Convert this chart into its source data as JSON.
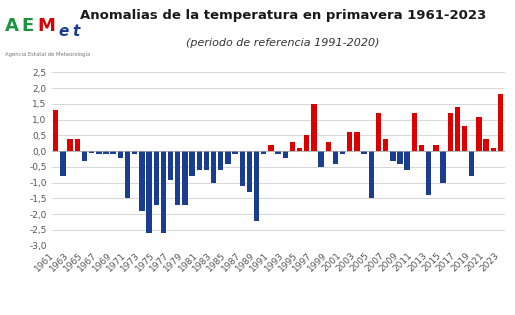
{
  "years": [
    1961,
    1962,
    1963,
    1964,
    1965,
    1966,
    1967,
    1968,
    1969,
    1970,
    1971,
    1972,
    1973,
    1974,
    1975,
    1976,
    1977,
    1978,
    1979,
    1980,
    1981,
    1982,
    1983,
    1984,
    1985,
    1986,
    1987,
    1988,
    1989,
    1990,
    1991,
    1992,
    1993,
    1994,
    1995,
    1996,
    1997,
    1998,
    1999,
    2000,
    2001,
    2002,
    2003,
    2004,
    2005,
    2006,
    2007,
    2008,
    2009,
    2010,
    2011,
    2012,
    2013,
    2014,
    2015,
    2016,
    2017,
    2018,
    2019,
    2020,
    2021,
    2022,
    2023
  ],
  "values": [
    1.3,
    -0.8,
    0.4,
    0.4,
    -0.3,
    -0.05,
    -0.1,
    -0.1,
    -0.1,
    -0.2,
    -1.5,
    -0.1,
    -1.9,
    -2.6,
    -1.7,
    -2.6,
    -0.9,
    -1.7,
    -1.7,
    -0.8,
    -0.6,
    -0.6,
    -1.0,
    -0.6,
    -0.4,
    -0.1,
    -1.1,
    -1.3,
    -2.2,
    -0.1,
    0.2,
    -0.1,
    -0.2,
    0.3,
    0.1,
    0.5,
    1.5,
    -0.5,
    0.3,
    -0.4,
    -0.1,
    0.6,
    0.6,
    -0.1,
    -1.5,
    1.2,
    0.4,
    -0.3,
    -0.4,
    -0.6,
    1.2,
    0.2,
    -1.4,
    0.2,
    -1.0,
    1.2,
    1.4,
    0.8,
    -0.8,
    1.1,
    0.4,
    0.1,
    1.8
  ],
  "title": "Anomalias de la temperatura en primavera 1961-2023",
  "subtitle": "(periodo de referencia 1991-2020)",
  "color_positive": "#dc0000",
  "color_negative": "#1a3d8f",
  "ylim": [
    -3.0,
    2.5
  ],
  "yticks": [
    -3.0,
    -2.5,
    -2.0,
    -1.5,
    -1.0,
    -0.5,
    0.0,
    0.5,
    1.0,
    1.5,
    2.0,
    2.5
  ],
  "ytick_labels": [
    "-3,0",
    "-2,5",
    "-2,0",
    "-1,5",
    "-1,0",
    "-0,5",
    "0,0",
    "0,5",
    "1,0",
    "1,5",
    "2,0",
    "2,5"
  ],
  "background_color": "#ffffff",
  "grid_color": "#d0d0d0",
  "title_fontsize": 9.5,
  "subtitle_fontsize": 8,
  "tick_fontsize": 6.5,
  "fig_width": 5.15,
  "fig_height": 3.15,
  "dpi": 100
}
